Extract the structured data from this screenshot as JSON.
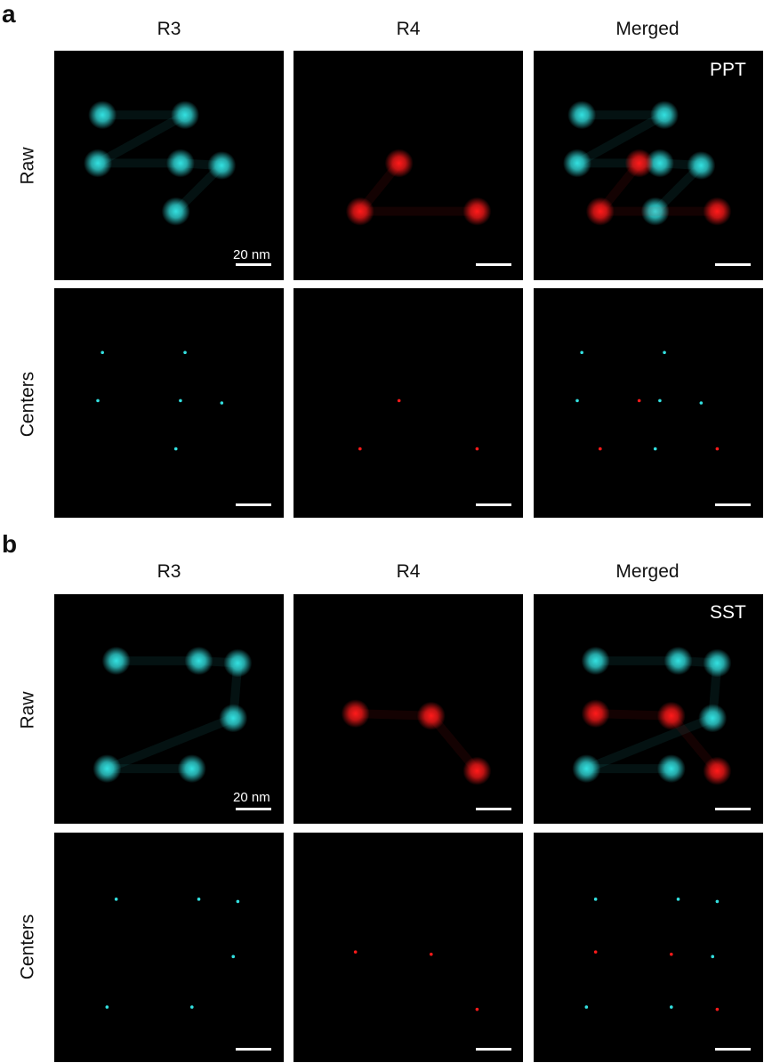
{
  "figure": {
    "sections": [
      {
        "letter": "a",
        "columns": [
          "R3",
          "R4",
          "Merged"
        ],
        "rows": [
          "Raw",
          "Centers"
        ],
        "structure_label": "PPT",
        "scale_label": "20 nm",
        "r3_spots": [
          [
            0.21,
            0.28
          ],
          [
            0.57,
            0.28
          ],
          [
            0.19,
            0.49
          ],
          [
            0.55,
            0.49
          ],
          [
            0.73,
            0.5
          ],
          [
            0.53,
            0.7
          ]
        ],
        "r4_spots": [
          [
            0.46,
            0.49
          ],
          [
            0.29,
            0.7
          ],
          [
            0.8,
            0.7
          ]
        ]
      },
      {
        "letter": "b",
        "columns": [
          "R3",
          "R4",
          "Merged"
        ],
        "rows": [
          "Raw",
          "Centers"
        ],
        "structure_label": "SST",
        "scale_label": "20 nm",
        "r3_spots": [
          [
            0.27,
            0.29
          ],
          [
            0.63,
            0.29
          ],
          [
            0.8,
            0.3
          ],
          [
            0.78,
            0.54
          ],
          [
            0.23,
            0.76
          ],
          [
            0.6,
            0.76
          ]
        ],
        "r4_spots": [
          [
            0.27,
            0.52
          ],
          [
            0.6,
            0.53
          ],
          [
            0.8,
            0.77
          ]
        ]
      }
    ],
    "colors": {
      "r3": "#33e0e0",
      "r4": "#ff1a1a"
    }
  }
}
